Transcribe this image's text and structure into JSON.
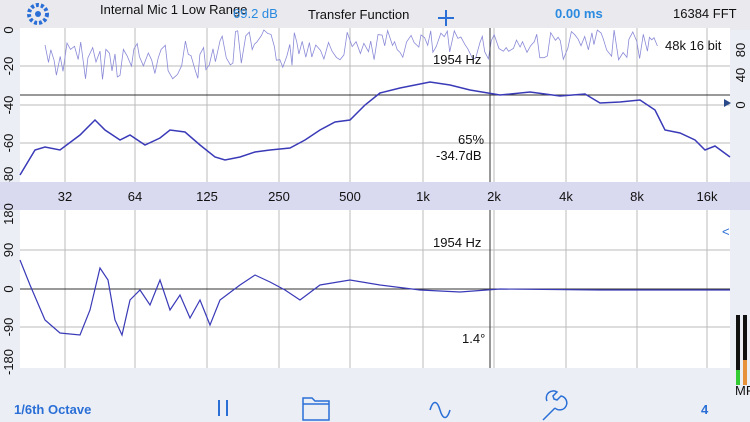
{
  "header": {
    "input": "Internal Mic 1 Low Range",
    "level": "69.2 dB",
    "title": "Transfer Function",
    "delay": "0.00 ms",
    "fft": "16384 FFT"
  },
  "magnitude_plot": {
    "format": "48k 16 bit",
    "cursor_freq": "1954 Hz",
    "coherence": "65%",
    "cursor_value": "-34.7dB",
    "left_ticks": [
      "0",
      "-20",
      "-40",
      "-60",
      "-80"
    ],
    "right_ticks": [
      "80",
      "40",
      "0"
    ]
  },
  "freq_labels": [
    "32",
    "64",
    "125",
    "250",
    "500",
    "1k",
    "2k",
    "4k",
    "8k",
    "16k"
  ],
  "phase_plot": {
    "cursor_freq": "1954 Hz",
    "cursor_value": "1.4°",
    "ticks": [
      "180",
      "90",
      "0",
      "-90",
      "-180"
    ],
    "marker": "<"
  },
  "toolbar": {
    "resolution": "1/6th Octave",
    "count": "4",
    "meter_label": "MR"
  }
}
